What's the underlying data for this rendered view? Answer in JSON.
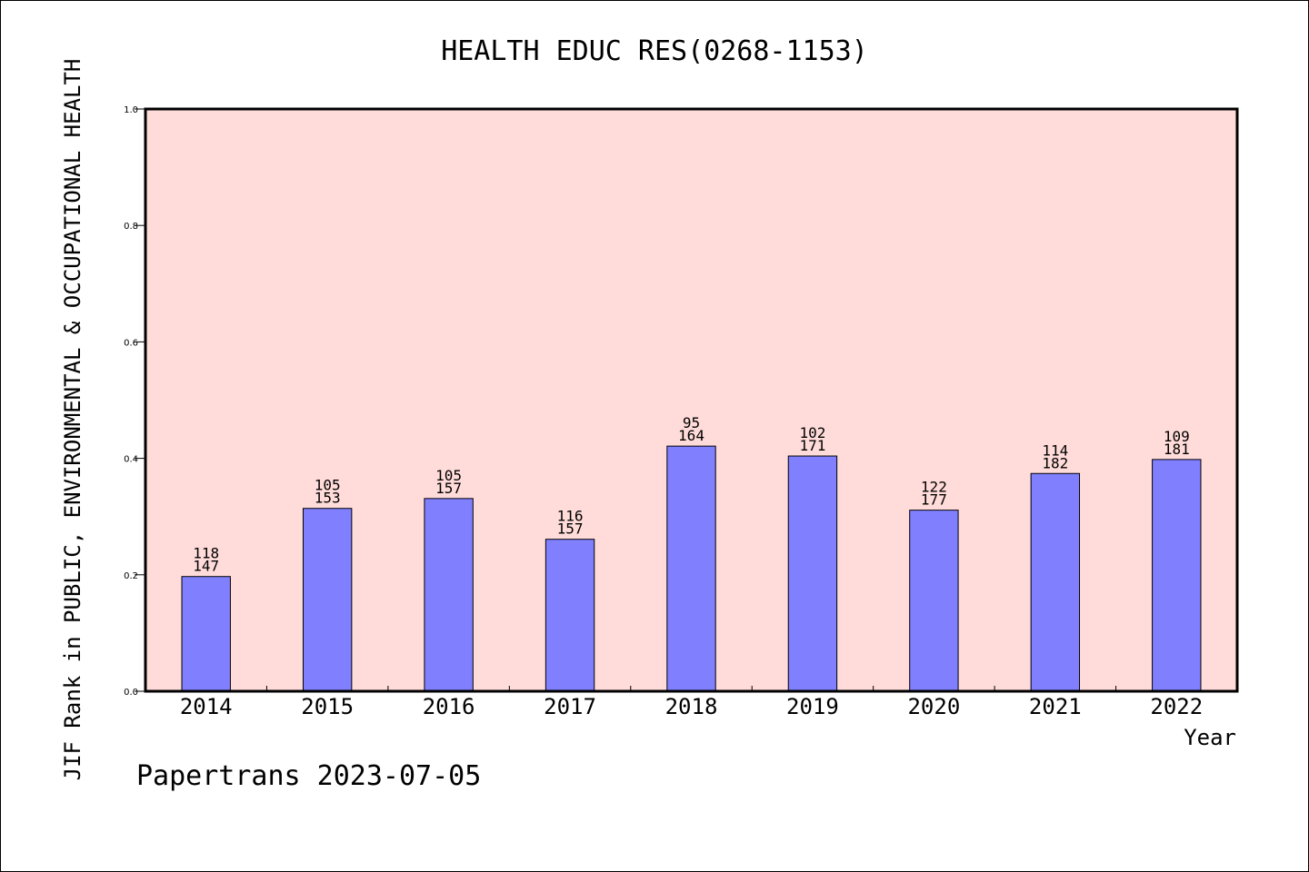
{
  "chart_data": {
    "type": "bar",
    "title": "HEALTH EDUC RES(0268-1153)",
    "xlabel": "Year",
    "ylabel": "JIF Rank in PUBLIC, ENVIRONMENTAL & OCCUPATIONAL HEALTH",
    "footer": "Papertrans 2023-07-05",
    "ylim": [
      0,
      1.0
    ],
    "yticks": [
      "0.0",
      "0.2",
      "0.4",
      "0.6",
      "0.8",
      "1.0"
    ],
    "categories": [
      "2014",
      "2015",
      "2016",
      "2017",
      "2018",
      "2019",
      "2020",
      "2021",
      "2022"
    ],
    "rank": [
      118,
      105,
      105,
      116,
      95,
      102,
      122,
      114,
      109
    ],
    "total": [
      147,
      153,
      157,
      157,
      164,
      171,
      177,
      182,
      181
    ],
    "values": [
      0.197,
      0.314,
      0.331,
      0.261,
      0.421,
      0.404,
      0.311,
      0.374,
      0.398
    ],
    "grid": false,
    "colors": {
      "plot_background": "#FFDCDA",
      "bar_fill": "#8080FF",
      "bar_stroke": "#000000",
      "axis": "#000000"
    }
  }
}
